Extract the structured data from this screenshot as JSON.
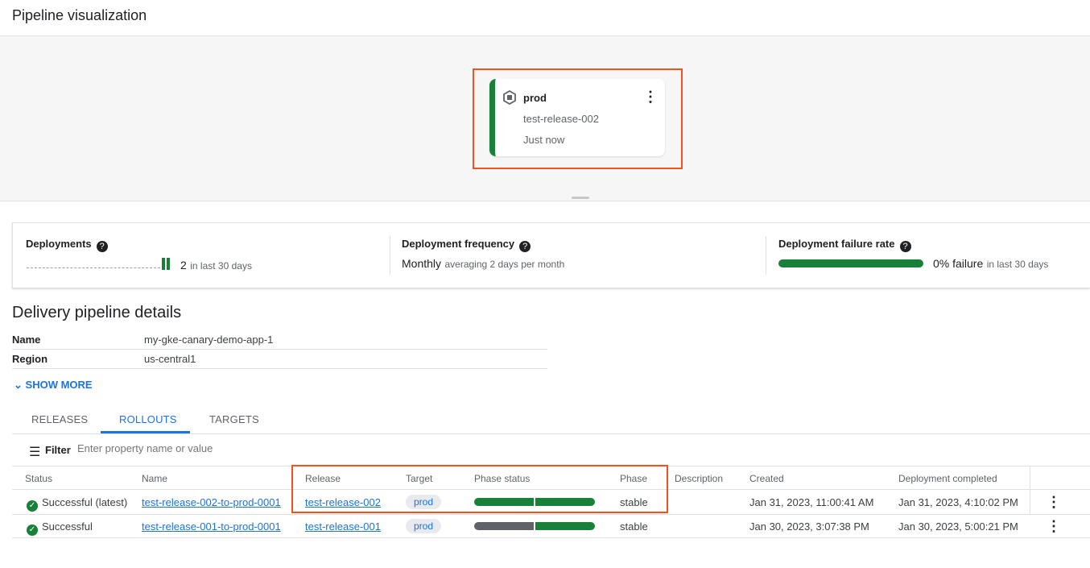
{
  "title": "Pipeline visualization",
  "node": {
    "target": "prod",
    "release": "test-release-002",
    "time": "Just now",
    "status_color": "#188038"
  },
  "metrics": {
    "deployments": {
      "label": "Deployments",
      "value": "2",
      "suffix": "in last 30 days"
    },
    "frequency": {
      "label": "Deployment frequency",
      "value": "Monthly",
      "suffix": "averaging 2 days per month"
    },
    "failure": {
      "label": "Deployment failure rate",
      "value": "0% failure",
      "suffix": "in last 30 days",
      "fill_percent": 100
    }
  },
  "details": {
    "title": "Delivery pipeline details",
    "rows": [
      {
        "key": "Name",
        "value": "my-gke-canary-demo-app-1"
      },
      {
        "key": "Region",
        "value": "us-central1"
      }
    ],
    "show_more": "SHOW MORE"
  },
  "tabs": [
    "RELEASES",
    "ROLLOUTS",
    "TARGETS"
  ],
  "active_tab": "ROLLOUTS",
  "filter": {
    "label": "Filter",
    "placeholder": "Enter property name or value"
  },
  "table": {
    "headers": [
      "Status",
      "Name",
      "Release",
      "Target",
      "Phase status",
      "Phase",
      "Description",
      "Created",
      "Deployment completed"
    ],
    "rows": [
      {
        "status": "Successful (latest)",
        "name": "test-release-002-to-prod-0001",
        "release": "test-release-002",
        "target": "prod",
        "phase_status": [
          "complete",
          "complete"
        ],
        "phase": "stable",
        "description": "",
        "created": "Jan 31, 2023, 11:00:41 AM",
        "completed": "Jan 31, 2023, 4:10:02 PM"
      },
      {
        "status": "Successful",
        "name": "test-release-001-to-prod-0001",
        "release": "test-release-001",
        "target": "prod",
        "phase_status": [
          "skipped",
          "complete"
        ],
        "phase": "stable",
        "description": "",
        "created": "Jan 30, 2023, 3:07:38 PM",
        "completed": "Jan 30, 2023, 5:00:21 PM"
      }
    ]
  },
  "colors": {
    "success": "#188038",
    "skipped": "#5f6368",
    "highlight": "#f4511e",
    "link": "#1a73e8"
  }
}
